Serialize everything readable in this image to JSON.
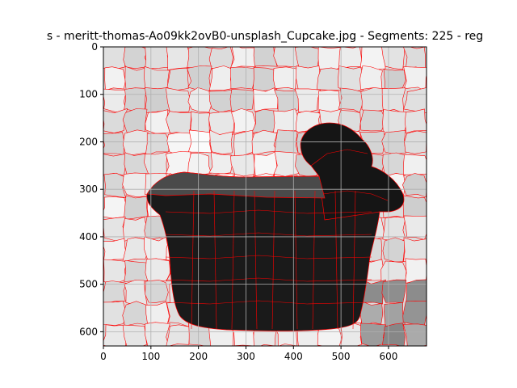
{
  "chart_data": {
    "type": "heatmap",
    "title": "s - meritt-thomas-Ao09kk2ovB0-unsplash_Cupcake.jpg - Segments: 225 - reg",
    "xlabel": "",
    "ylabel": "",
    "xlim": [
      0,
      680
    ],
    "ylim": [
      630,
      0
    ],
    "x_ticks": [
      0,
      100,
      200,
      300,
      400,
      500,
      600
    ],
    "y_ticks": [
      0,
      100,
      200,
      300,
      400,
      500,
      600
    ],
    "grid": true,
    "segments": 225,
    "boundary_color": "#ff0000",
    "grid_color": "#b0b0b0",
    "content": "grayscale superpixel segmentation of a cupcake image; each region filled with its mean gray value, boundaries drawn in red"
  }
}
